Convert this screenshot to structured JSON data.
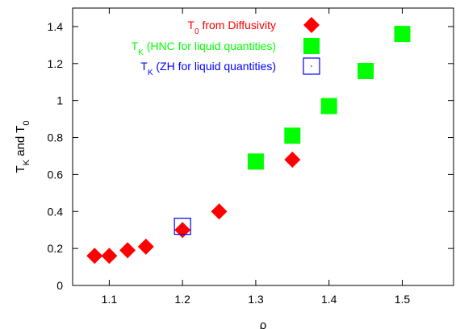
{
  "chart_data": {
    "type": "scatter",
    "xlabel": "ρ",
    "ylabel": {
      "main": "T",
      "sub1": "K",
      "mid": " and T",
      "sub2": "0"
    },
    "xlim": [
      1.05,
      1.57
    ],
    "ylim": [
      0,
      1.5
    ],
    "xticks": [
      "1.1",
      "1.2",
      "1.3",
      "1.4",
      "1.5"
    ],
    "xtick_values": [
      1.1,
      1.2,
      1.3,
      1.4,
      1.5
    ],
    "yticks": [
      "0",
      "0.2",
      "0.4",
      "0.6",
      "0.8",
      "1",
      "1.2",
      "1.4"
    ],
    "ytick_values": [
      0,
      0.2,
      0.4,
      0.6,
      0.8,
      1.0,
      1.2,
      1.4
    ],
    "legend_position": "top-left",
    "series": [
      {
        "name": {
          "pre": "T",
          "sub": "0",
          "post": " from Diffusivity"
        },
        "marker": "diamond-filled",
        "color": "#ff0000",
        "points": [
          {
            "x": 1.08,
            "y": 0.16
          },
          {
            "x": 1.1,
            "y": 0.16
          },
          {
            "x": 1.125,
            "y": 0.19
          },
          {
            "x": 1.15,
            "y": 0.21
          },
          {
            "x": 1.2,
            "y": 0.3
          },
          {
            "x": 1.25,
            "y": 0.4
          },
          {
            "x": 1.35,
            "y": 0.68
          }
        ]
      },
      {
        "name": {
          "pre": "T",
          "sub": "K",
          "post": " (HNC for liquid quantities)"
        },
        "marker": "square-filled",
        "color": "#00ff00",
        "points": [
          {
            "x": 1.3,
            "y": 0.67
          },
          {
            "x": 1.35,
            "y": 0.81
          },
          {
            "x": 1.4,
            "y": 0.97
          },
          {
            "x": 1.45,
            "y": 1.16
          },
          {
            "x": 1.5,
            "y": 1.36
          }
        ]
      },
      {
        "name": {
          "pre": "T",
          "sub": "K",
          "post": " (ZH for liquid quantities)"
        },
        "marker": "square-open",
        "color": "#0000ff",
        "points": [
          {
            "x": 1.2,
            "y": 0.32
          }
        ]
      }
    ]
  }
}
